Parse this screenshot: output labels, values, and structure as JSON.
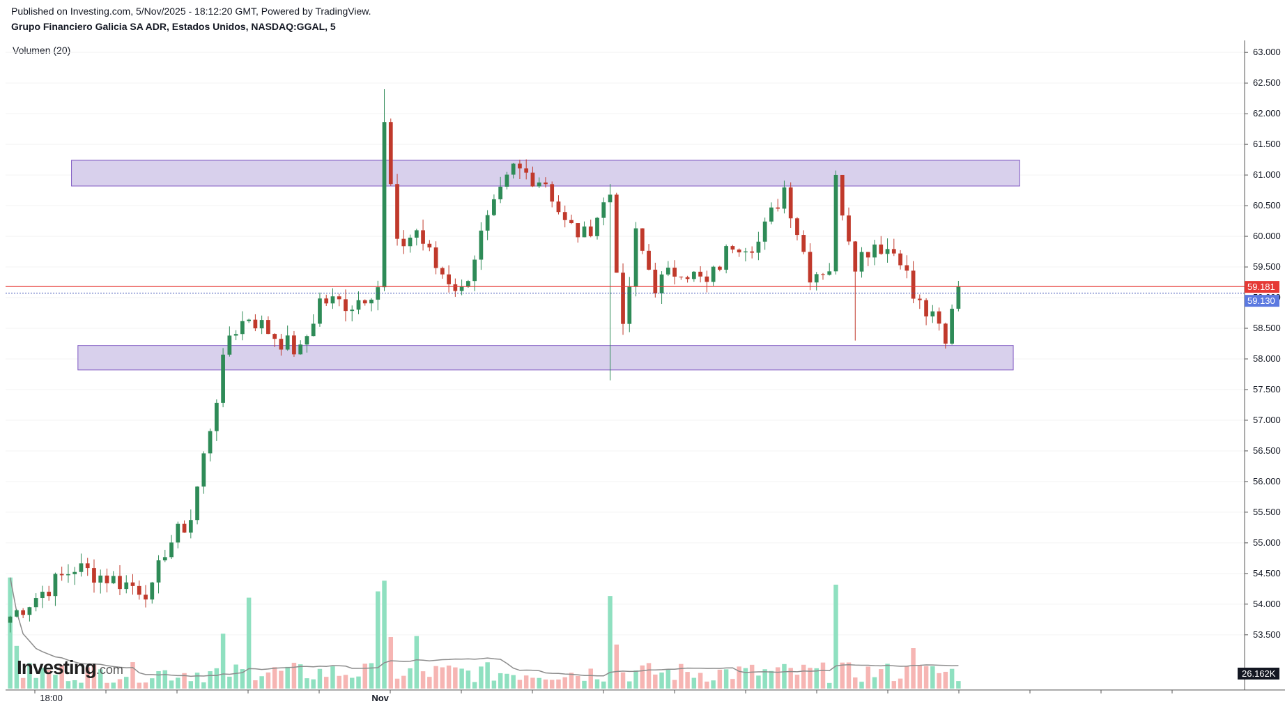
{
  "header": {
    "published": "Published on Investing.com, 5/Nov/2025 - 18:12:20 GMT, Powered by TradingView.",
    "symbol": "Grupo Financiero Galicia SA ADR, Estados Unidos, NASDAQ:GGAL, 5"
  },
  "volume_label": "Volumen (20)",
  "logo": {
    "main": "Investing",
    "suffix": ".com"
  },
  "colors": {
    "up": "#26a69a",
    "down": "#ef5350",
    "candle_up": "#2e8b57",
    "candle_down": "#c0392b",
    "vol_up": "#8fe0c0",
    "vol_down": "#f6b5b3",
    "zone_fill": "#d8d0ec",
    "zone_border": "#7e57c2",
    "last_price_line": "#e53935",
    "prev_price_line": "#3f51b5",
    "vol_ma": "#8c8c8c"
  },
  "chart_data": {
    "type": "candlestick",
    "title": "Grupo Financiero Galicia SA ADR, Estados Unidos, NASDAQ:GGAL, 5",
    "timeframe": "5",
    "y_axis": {
      "range": [
        52.6,
        63.4
      ],
      "ticks": [
        "63.000",
        "62.500",
        "62.000",
        "61.500",
        "61.000",
        "60.500",
        "60.000",
        "59.500",
        "59.000",
        "58.500",
        "58.000",
        "57.500",
        "57.000",
        "56.500",
        "56.000",
        "55.500",
        "55.000",
        "54.500",
        "54.000",
        "53.500"
      ]
    },
    "x_axis": {
      "labels": [
        {
          "text": "18:00",
          "bar": 6
        },
        {
          "text": "Nov",
          "bar": 57
        }
      ]
    },
    "price_labels": {
      "last": "59.181",
      "previous": "59.130"
    },
    "volume_label": "26.162K",
    "zones": [
      {
        "bar_start": 10,
        "bar_end": 157,
        "price_top": 61.24,
        "price_bottom": 60.82
      },
      {
        "bar_start": 11,
        "bar_end": 156,
        "price_top": 58.22,
        "price_bottom": 57.82
      }
    ],
    "key_points": [
      {
        "bar": 0,
        "close": 53.8
      },
      {
        "bar": 10,
        "close": 54.6
      },
      {
        "bar": 22,
        "close": 54.2
      },
      {
        "bar": 24,
        "close": 54.9
      },
      {
        "bar": 28,
        "close": 55.4
      },
      {
        "bar": 31,
        "close": 56.9
      },
      {
        "bar": 34,
        "close": 58.4
      },
      {
        "bar": 37,
        "close": 58.7
      },
      {
        "bar": 42,
        "close": 58.3
      },
      {
        "bar": 45,
        "close": 58.1
      },
      {
        "bar": 48,
        "close": 58.95
      },
      {
        "bar": 53,
        "close": 58.9
      },
      {
        "bar": 57,
        "close": 59.2
      },
      {
        "bar": 58,
        "close": 61.8
      },
      {
        "bar": 60,
        "close": 59.8
      },
      {
        "bar": 63,
        "close": 60.1
      },
      {
        "bar": 66,
        "close": 59.5
      },
      {
        "bar": 70,
        "close": 59.1
      },
      {
        "bar": 73,
        "close": 60.0
      },
      {
        "bar": 78,
        "close": 61.1
      },
      {
        "bar": 83,
        "close": 60.9
      },
      {
        "bar": 86,
        "close": 60.2
      },
      {
        "bar": 89,
        "close": 60.0
      },
      {
        "bar": 93,
        "close": 60.7
      },
      {
        "bar": 95,
        "close": 58.4
      },
      {
        "bar": 97,
        "close": 60.0
      },
      {
        "bar": 100,
        "close": 59.2
      },
      {
        "bar": 104,
        "close": 59.5
      },
      {
        "bar": 108,
        "close": 59.2
      },
      {
        "bar": 112,
        "close": 59.9
      },
      {
        "bar": 116,
        "close": 59.9
      },
      {
        "bar": 120,
        "close": 60.8
      },
      {
        "bar": 124,
        "close": 59.4
      },
      {
        "bar": 127,
        "close": 59.5
      },
      {
        "bar": 128,
        "close": 60.9
      },
      {
        "bar": 131,
        "close": 59.6
      },
      {
        "bar": 134,
        "close": 59.9
      },
      {
        "bar": 138,
        "close": 59.7
      },
      {
        "bar": 140,
        "close": 59.0
      },
      {
        "bar": 144,
        "close": 58.5
      },
      {
        "bar": 145,
        "close": 58.2
      },
      {
        "bar": 146,
        "close": 58.9
      },
      {
        "bar": 147,
        "close": 59.2
      }
    ],
    "bar_count": 148
  }
}
